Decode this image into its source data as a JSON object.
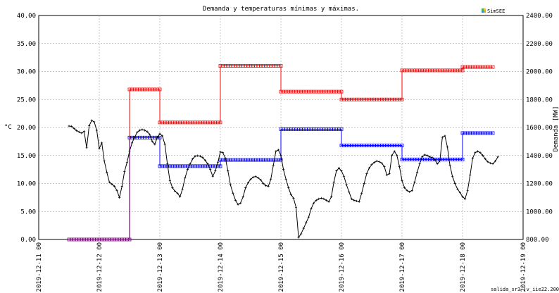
{
  "chart_data": {
    "type": "line",
    "title": "Demanda y temperaturas mínimas y máximas.",
    "ylabel_left": "°C",
    "ylabel_right": "Demanda [MW]",
    "legend_label": "SimSEE",
    "footer": "salida_sr3 (v_iie22.200",
    "grid": true,
    "ylim_left": [
      0,
      40
    ],
    "ylim_right": [
      800,
      2400
    ],
    "x_days": [
      "2019-12-11 00",
      "2019-12-12 00",
      "2019-12-13 00",
      "2019-12-14 00",
      "2019-12-15 00",
      "2019-12-16 00",
      "2019-12-17 00",
      "2019-12-18 00",
      "2019-12-19 00"
    ],
    "y_ticks_left": [
      "0.00",
      "5.00",
      "10.00",
      "15.00",
      "20.00",
      "25.00",
      "30.00",
      "35.00",
      "40.00"
    ],
    "y_ticks_right": [
      "800.00",
      "1000.00",
      "1200.00",
      "1400.00",
      "1600.00",
      "1800.00",
      "2000.00",
      "2200.00",
      "2400.00"
    ],
    "colors": {
      "max_temp": "#ff0000",
      "min_temp": "#0000ff",
      "demand": "#000000",
      "offset": "#800080"
    },
    "series": [
      {
        "axis": "left",
        "color": "#ff0000",
        "segments": [
          {
            "x": [
              0.5,
              1.5
            ],
            "y": [
              0,
              0
            ]
          },
          {
            "x": [
              1.5,
              2.0
            ],
            "y": [
              26.8,
              26.8
            ]
          },
          {
            "x": [
              2.0,
              3.0
            ],
            "y": [
              20.9,
              20.9
            ]
          },
          {
            "x": [
              3.0,
              4.0
            ],
            "y": [
              31.0,
              31.0
            ]
          },
          {
            "x": [
              4.0,
              5.0
            ],
            "y": [
              26.4,
              26.4
            ]
          },
          {
            "x": [
              5.0,
              6.0
            ],
            "y": [
              25.0,
              25.0
            ]
          },
          {
            "x": [
              6.0,
              7.0
            ],
            "y": [
              30.2,
              30.2
            ]
          },
          {
            "x": [
              7.0,
              7.5
            ],
            "y": [
              30.8,
              30.8
            ]
          }
        ]
      },
      {
        "axis": "left",
        "color": "#0000ff",
        "segments": [
          {
            "x": [
              0.5,
              1.5
            ],
            "y": [
              0,
              0
            ]
          },
          {
            "x": [
              1.5,
              2.0
            ],
            "y": [
              18.2,
              18.2
            ]
          },
          {
            "x": [
              2.0,
              3.0
            ],
            "y": [
              13.1,
              13.1
            ]
          },
          {
            "x": [
              3.0,
              4.0
            ],
            "y": [
              14.2,
              14.2
            ]
          },
          {
            "x": [
              4.0,
              5.0
            ],
            "y": [
              19.7,
              19.7
            ]
          },
          {
            "x": [
              5.0,
              6.0
            ],
            "y": [
              16.8,
              16.8
            ]
          },
          {
            "x": [
              6.0,
              7.0
            ],
            "y": [
              14.3,
              14.3
            ]
          },
          {
            "x": [
              7.0,
              7.5
            ],
            "y": [
              19.0,
              19.0
            ]
          }
        ]
      },
      {
        "axis": "right",
        "color": "#000000",
        "x_start": 0.5,
        "x_step": 0.04166667,
        "values": [
          1610,
          1608,
          1593,
          1578,
          1568,
          1560,
          1572,
          1455,
          1612,
          1650,
          1640,
          1580,
          1450,
          1490,
          1360,
          1280,
          1210,
          1195,
          1180,
          1150,
          1100,
          1180,
          1285,
          1350,
          1430,
          1490,
          1530,
          1565,
          1580,
          1585,
          1580,
          1570,
          1550,
          1500,
          1480,
          1530,
          1555,
          1540,
          1480,
          1340,
          1220,
          1170,
          1145,
          1130,
          1105,
          1160,
          1240,
          1300,
          1340,
          1375,
          1395,
          1398,
          1395,
          1385,
          1365,
          1340,
          1300,
          1250,
          1290,
          1350,
          1425,
          1420,
          1380,
          1290,
          1190,
          1130,
          1080,
          1050,
          1060,
          1105,
          1170,
          1205,
          1230,
          1245,
          1250,
          1240,
          1225,
          1200,
          1185,
          1180,
          1230,
          1330,
          1430,
          1440,
          1400,
          1300,
          1230,
          1170,
          1120,
          1095,
          1030,
          815,
          840,
          880,
          920,
          960,
          1020,
          1060,
          1080,
          1090,
          1095,
          1090,
          1080,
          1070,
          1105,
          1210,
          1290,
          1310,
          1290,
          1250,
          1190,
          1140,
          1090,
          1080,
          1075,
          1070,
          1130,
          1200,
          1270,
          1310,
          1335,
          1350,
          1360,
          1355,
          1345,
          1320,
          1260,
          1270,
          1400,
          1430,
          1400,
          1320,
          1220,
          1170,
          1150,
          1140,
          1150,
          1210,
          1280,
          1340,
          1390,
          1405,
          1400,
          1390,
          1385,
          1370,
          1340,
          1360,
          1530,
          1540,
          1460,
          1330,
          1250,
          1200,
          1160,
          1135,
          1105,
          1090,
          1150,
          1260,
          1380,
          1420,
          1430,
          1420,
          1400,
          1375,
          1355,
          1345,
          1340,
          1360,
          1390
        ]
      }
    ]
  }
}
